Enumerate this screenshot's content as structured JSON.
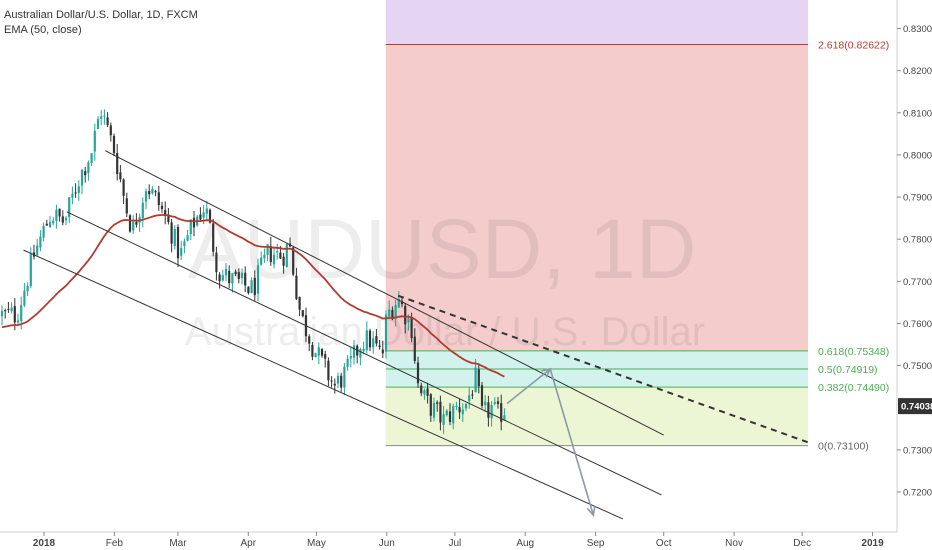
{
  "header": {
    "symbol_line": "Australian Dollar/U.S. Dollar, 1D, FXCM",
    "indicator_line": "EMA (50, close)"
  },
  "watermark": {
    "main": "AUDUSD, 1D",
    "sub": "Australian Dollar / U.S. Dollar"
  },
  "colors": {
    "up": "#26a69a",
    "down": "#333333",
    "ema": "#b23a2e",
    "fib_top_fill": "#e6d4f3",
    "fib_red_fill": "#f4cccc",
    "fib_teal_fill": "#d2f2ee",
    "fib_green_fill": "#ecf6d4",
    "fib_top_line": "#c0392b",
    "fib_green_line": "#4caf50",
    "fib_zero_line": "#888888",
    "current_price_bg": "#333333",
    "channel": "#333333",
    "arrows": "#8a9aa8"
  },
  "chart_data": {
    "type": "candlestick",
    "title": "Australian Dollar/U.S. Dollar, 1D, FXCM",
    "x_ticks": [
      "2018",
      "Feb",
      "Mar",
      "Apr",
      "May",
      "Jun",
      "Jul",
      "Aug",
      "Sep",
      "Oct",
      "Nov",
      "Dec",
      "2019"
    ],
    "y_ticks": [
      "0.83000",
      "0.82000",
      "0.81000",
      "0.80000",
      "0.79000",
      "0.78000",
      "0.77000",
      "0.76000",
      "0.75000",
      "0.73000",
      "0.72000"
    ],
    "ylim": [
      0.7105,
      0.8325
    ],
    "grid": false,
    "current_price": "0.74038",
    "fibonacci": [
      {
        "label": "2.618(0.82622)",
        "value": 0.82622
      },
      {
        "label": "0.618(0.75348)",
        "value": 0.75348
      },
      {
        "label": "0.5(0.74919)",
        "value": 0.74919
      },
      {
        "label": "0.382(0.74490)",
        "value": 0.7449
      },
      {
        "label": "0(0.73100)",
        "value": 0.731
      }
    ],
    "ohlc_anchor_closes": [
      [
        "2017-12-20",
        0.762
      ],
      [
        "2017-12-28",
        0.777
      ],
      [
        "2018-01-04",
        0.786
      ],
      [
        "2018-01-10",
        0.784
      ],
      [
        "2018-01-16",
        0.794
      ],
      [
        "2018-01-22",
        0.801
      ],
      [
        "2018-01-26",
        0.811
      ],
      [
        "2018-02-01",
        0.801
      ],
      [
        "2018-02-06",
        0.788
      ],
      [
        "2018-02-09",
        0.782
      ],
      [
        "2018-02-15",
        0.793
      ],
      [
        "2018-02-20",
        0.789
      ],
      [
        "2018-02-26",
        0.782
      ],
      [
        "2018-03-02",
        0.776
      ],
      [
        "2018-03-08",
        0.784
      ],
      [
        "2018-03-13",
        0.788
      ],
      [
        "2018-03-19",
        0.772
      ],
      [
        "2018-03-26",
        0.77
      ],
      [
        "2018-04-03",
        0.768
      ],
      [
        "2018-04-10",
        0.777
      ],
      [
        "2018-04-16",
        0.776
      ],
      [
        "2018-04-19",
        0.779
      ],
      [
        "2018-04-24",
        0.762
      ],
      [
        "2018-04-30",
        0.754
      ],
      [
        "2018-05-04",
        0.75
      ],
      [
        "2018-05-09",
        0.745
      ],
      [
        "2018-05-15",
        0.749
      ],
      [
        "2018-05-21",
        0.756
      ],
      [
        "2018-05-25",
        0.756
      ],
      [
        "2018-05-30",
        0.752
      ],
      [
        "2018-06-01",
        0.762
      ],
      [
        "2018-06-06",
        0.766
      ],
      [
        "2018-06-12",
        0.759
      ],
      [
        "2018-06-15",
        0.744
      ],
      [
        "2018-06-19",
        0.741
      ],
      [
        "2018-06-26",
        0.737
      ],
      [
        "2018-07-02",
        0.74
      ],
      [
        "2018-07-06",
        0.741
      ],
      [
        "2018-07-10",
        0.747
      ],
      [
        "2018-07-13",
        0.738
      ],
      [
        "2018-07-17",
        0.74
      ],
      [
        "2018-07-20",
        0.738
      ],
      [
        "2018-07-24",
        0.7404
      ]
    ],
    "series": [
      {
        "name": "EMA (50, close)",
        "type": "line"
      }
    ]
  }
}
